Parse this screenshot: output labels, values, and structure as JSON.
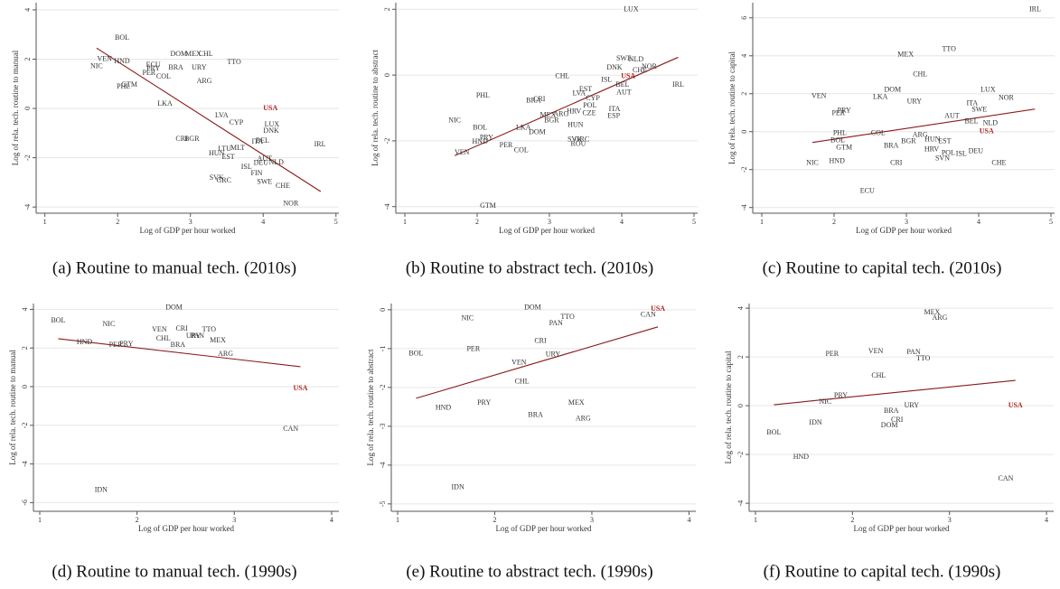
{
  "chart_data": [
    {
      "type": "scatter",
      "caption": "(a) Routine to manual tech. (2010s)",
      "xlabel": "Log of GDP per hour worked",
      "ylabel": "Log of rela. tech. routine to manual",
      "xlim": [
        0.88,
        5.04
      ],
      "ylim": [
        -4.25,
        4.29
      ],
      "xticks": [
        1,
        2,
        3,
        4,
        5
      ],
      "yticks": [
        -4,
        -2,
        0,
        2,
        4
      ],
      "grid": true,
      "series": [
        {
          "color": "#333333",
          "labels": [
            "BOL",
            "VEN",
            "HND",
            "NIC",
            "DOM",
            "MEX",
            "CHL",
            "ECU",
            "PRY",
            "PER",
            "BRA",
            "URY",
            "COL",
            "TTO",
            "PHL",
            "GTM",
            "ARG",
            "LKA",
            "LVA",
            "CYP",
            "LUX",
            "DNK",
            "CRI",
            "BGR",
            "IRL",
            "AUT",
            "NLD",
            "DEU",
            "ISL",
            "FIN",
            "SWE",
            "CHE",
            "NOR",
            "LTU",
            "MLT",
            "EST",
            "HUN",
            "SVK",
            "GRC",
            "ITA",
            "BEL"
          ],
          "x": [
            2.06,
            1.82,
            2.06,
            1.71,
            2.84,
            3.04,
            3.21,
            2.49,
            2.49,
            2.43,
            2.8,
            3.12,
            2.63,
            3.6,
            2.08,
            2.16,
            3.19,
            2.65,
            3.43,
            3.63,
            4.12,
            4.11,
            2.88,
            3.02,
            4.78,
            4.02,
            4.18,
            3.97,
            3.77,
            3.91,
            4.02,
            4.27,
            4.38,
            3.47,
            3.65,
            3.52,
            3.36,
            3.36,
            3.46,
            3.92,
            3.99
          ],
          "y": [
            2.86,
            2.0,
            1.9,
            1.7,
            2.2,
            2.2,
            2.2,
            1.76,
            1.6,
            1.43,
            1.65,
            1.65,
            1.28,
            1.87,
            0.88,
            0.95,
            1.1,
            0.18,
            -0.29,
            -0.59,
            -0.66,
            -0.92,
            -1.25,
            -1.25,
            -1.47,
            -2.05,
            -2.2,
            -2.23,
            -2.38,
            -2.64,
            -3.0,
            -3.15,
            -3.88,
            -1.65,
            -1.61,
            -1.98,
            -1.83,
            -2.82,
            -2.93,
            -1.36,
            -1.32
          ]
        },
        {
          "color": "#b22222",
          "labels": [
            "USA"
          ],
          "x": [
            4.1
          ],
          "y": [
            0.0
          ]
        }
      ],
      "fit": {
        "color": "#8b1a1a",
        "x": [
          1.71,
          4.79
        ],
        "y": [
          2.45,
          -3.37
        ]
      }
    },
    {
      "type": "scatter",
      "caption": "(b) Routine to abstract tech. (2010s)",
      "xlabel": "Log of GDP per hour worked",
      "ylabel": "Log of rela. tech. routine to abstract",
      "xlim": [
        0.875,
        5.05
      ],
      "ylim": [
        -4.2,
        2.2
      ],
      "xticks": [
        1,
        2,
        3,
        4,
        5
      ],
      "yticks": [
        -4,
        -2,
        0,
        2
      ],
      "grid": true,
      "series": [
        {
          "color": "#333333",
          "labels": [
            "LUX",
            "SWE",
            "NLD",
            "DNK",
            "CHE",
            "NOR",
            "ISL",
            "BEL",
            "AUT",
            "CHL",
            "IRL",
            "PHL",
            "CRI",
            "BRA",
            "EST",
            "LVA",
            "CYP",
            "POL",
            "HRV",
            "ITA",
            "ESP",
            "CZE",
            "MEX",
            "ARG",
            "BGR",
            "HUN",
            "NIC",
            "BOL",
            "LKA",
            "DOM",
            "PRY",
            "HND",
            "PER",
            "COL",
            "SVK",
            "GRC",
            "ROU",
            "VEN",
            "GTM"
          ],
          "x": [
            4.13,
            4.03,
            4.2,
            3.9,
            4.25,
            4.38,
            3.79,
            4.01,
            4.03,
            3.18,
            4.78,
            2.08,
            2.86,
            2.78,
            3.5,
            3.41,
            3.6,
            3.56,
            3.34,
            3.9,
            3.89,
            3.55,
            2.98,
            3.16,
            3.03,
            3.36,
            1.69,
            2.04,
            2.64,
            2.83,
            2.13,
            2.04,
            2.4,
            2.61,
            3.35,
            3.45,
            3.4,
            1.79,
            2.15
          ],
          "y": [
            1.99,
            0.49,
            0.46,
            0.22,
            0.14,
            0.25,
            -0.16,
            -0.3,
            -0.54,
            -0.05,
            -0.3,
            -0.63,
            -0.74,
            -0.79,
            -0.44,
            -0.57,
            -0.71,
            -0.93,
            -1.12,
            -1.04,
            -1.25,
            -1.17,
            -1.23,
            -1.2,
            -1.39,
            -1.53,
            -1.39,
            -1.61,
            -1.61,
            -1.74,
            -1.91,
            -2.04,
            -2.15,
            -2.29,
            -1.96,
            -1.96,
            -2.1,
            -2.37,
            -3.98
          ]
        },
        {
          "color": "#b22222",
          "labels": [
            "USA"
          ],
          "x": [
            4.09
          ],
          "y": [
            -0.05
          ]
        }
      ],
      "fit": {
        "color": "#8b1a1a",
        "x": [
          1.69,
          4.78
        ],
        "y": [
          -2.45,
          0.54
        ]
      }
    },
    {
      "type": "scatter",
      "caption": "(c) Routine to capital tech. (2010s)",
      "xlabel": "Log of GDP per hour worked",
      "ylabel": "Log of rela. tech. routine to capital",
      "xlim": [
        0.875,
        5.05
      ],
      "ylim": [
        -4.3,
        6.8
      ],
      "xticks": [
        1,
        2,
        3,
        4,
        5
      ],
      "yticks": [
        -4,
        -2,
        0,
        2,
        4,
        6
      ],
      "grid": true,
      "series": [
        {
          "color": "#333333",
          "labels": [
            "IRL",
            "TTO",
            "MEX",
            "CHL",
            "DOM",
            "VEN",
            "LKA",
            "URY",
            "LUX",
            "NOR",
            "ITA",
            "SWE",
            "PRY",
            "PER",
            "AUT",
            "BEL",
            "NLD",
            "PHL",
            "COL",
            "BOL",
            "GTM",
            "BRA",
            "BGR",
            "ARG",
            "HUN",
            "EST",
            "HRV",
            "POL",
            "SVN",
            "ISL",
            "DEU",
            "NIC",
            "HND",
            "CRI",
            "CHE",
            "ECU"
          ],
          "x": [
            4.78,
            3.59,
            2.99,
            3.19,
            2.81,
            1.79,
            2.64,
            3.11,
            4.13,
            4.38,
            3.91,
            4.01,
            2.14,
            2.06,
            3.63,
            3.9,
            4.16,
            2.08,
            2.61,
            2.05,
            2.14,
            2.79,
            3.03,
            3.19,
            3.36,
            3.53,
            3.35,
            3.58,
            3.5,
            3.76,
            3.96,
            1.7,
            2.04,
            2.86,
            4.28,
            2.46
          ],
          "y": [
            6.43,
            4.33,
            4.05,
            3.0,
            2.19,
            1.86,
            1.81,
            1.57,
            2.19,
            1.76,
            1.48,
            1.14,
            1.1,
            0.95,
            0.81,
            0.52,
            0.43,
            -0.1,
            -0.1,
            -0.48,
            -0.86,
            -0.76,
            -0.52,
            -0.19,
            -0.43,
            -0.52,
            -0.95,
            -1.14,
            -1.43,
            -1.19,
            -1.05,
            -1.67,
            -1.57,
            -1.67,
            -1.67,
            -3.14
          ]
        },
        {
          "color": "#b22222",
          "labels": [
            "USA"
          ],
          "x": [
            4.11
          ],
          "y": [
            0.0
          ]
        }
      ],
      "fit": {
        "color": "#8b1a1a",
        "x": [
          1.7,
          4.78
        ],
        "y": [
          -0.57,
          1.19
        ]
      }
    },
    {
      "type": "scatter",
      "caption": "(d) Routine to manual tech. (1990s)",
      "xlabel": "Log of GDP per hour worked",
      "ylabel": "Log of rela. tech. routine to manual",
      "xlim": [
        0.935,
        4.075
      ],
      "ylim": [
        -6.45,
        4.3
      ],
      "xticks": [
        1,
        2,
        3,
        4
      ],
      "yticks": [
        -6,
        -4,
        -2,
        0,
        2,
        4
      ],
      "grid": true,
      "series": [
        {
          "color": "#333333",
          "labels": [
            "BOL",
            "NIC",
            "DOM",
            "VEN",
            "CRI",
            "TTO",
            "URY",
            "PAN",
            "CHL",
            "MEX",
            "HND",
            "PER",
            "PRY",
            "BRA",
            "ARG",
            "CAN",
            "IDN"
          ],
          "x": [
            1.19,
            1.71,
            2.38,
            2.23,
            2.46,
            2.74,
            2.58,
            2.62,
            2.27,
            2.83,
            1.46,
            1.78,
            1.89,
            2.42,
            2.91,
            3.58,
            1.63
          ],
          "y": [
            3.41,
            3.22,
            4.07,
            2.94,
            2.99,
            2.94,
            2.62,
            2.62,
            2.48,
            2.38,
            2.29,
            2.15,
            2.2,
            2.15,
            1.68,
            -2.2,
            -5.37
          ]
        },
        {
          "color": "#b22222",
          "labels": [
            "USA"
          ],
          "x": [
            3.68
          ],
          "y": [
            -0.09
          ]
        }
      ],
      "fit": {
        "color": "#8b1a1a",
        "x": [
          1.19,
          3.68
        ],
        "y": [
          2.48,
          1.03
        ]
      }
    },
    {
      "type": "scatter",
      "caption": "(e) Routine to abstract tech. (1990s)",
      "xlabel": "Log of GDP per hour worked",
      "ylabel": "Log of rela. tech. routine to abstract",
      "xlim": [
        0.935,
        4.07
      ],
      "ylim": [
        -5.19,
        0.16
      ],
      "xticks": [
        1,
        2,
        3,
        4
      ],
      "yticks": [
        -5,
        -4,
        -3,
        -2,
        -1,
        0
      ],
      "grid": true,
      "series": [
        {
          "color": "#333333",
          "labels": [
            "DOM",
            "NIC",
            "CAN",
            "TTO",
            "PAN",
            "PER",
            "CRI",
            "BOL",
            "URY",
            "VEN",
            "CHL",
            "PRY",
            "MEX",
            "HND",
            "BRA",
            "ARG",
            "IDN"
          ],
          "x": [
            2.39,
            1.72,
            3.58,
            2.75,
            2.63,
            1.78,
            2.47,
            1.19,
            2.6,
            2.25,
            2.28,
            1.89,
            2.84,
            1.47,
            2.42,
            2.91,
            1.62
          ],
          "y": [
            0.05,
            -0.23,
            -0.14,
            -0.19,
            -0.35,
            -1.02,
            -0.81,
            -1.14,
            -1.16,
            -1.37,
            -1.86,
            -2.4,
            -2.4,
            -2.53,
            -2.72,
            -2.81,
            -4.58
          ]
        },
        {
          "color": "#b22222",
          "labels": [
            "USA"
          ],
          "x": [
            3.68
          ],
          "y": [
            0.02
          ]
        }
      ],
      "fit": {
        "color": "#8b1a1a",
        "x": [
          1.19,
          3.68
        ],
        "y": [
          -2.28,
          -0.44
        ]
      }
    },
    {
      "type": "scatter",
      "caption": "(f) Routine to capital tech. (1990s)",
      "xlabel": "Log of GDP per hour worked",
      "ylabel": "Log of rela. tech. routine to capital",
      "xlim": [
        0.935,
        4.074
      ],
      "ylim": [
        -4.33,
        4.19
      ],
      "xticks": [
        1,
        2,
        3,
        4
      ],
      "yticks": [
        -4,
        -2,
        0,
        2,
        4
      ],
      "grid": true,
      "series": [
        {
          "color": "#333333",
          "labels": [
            "MEX",
            "ARG",
            "PER",
            "VEN",
            "PAN",
            "TTO",
            "CHL",
            "PRY",
            "NIC",
            "URY",
            "BRA",
            "CRI",
            "DOM",
            "IDN",
            "BOL",
            "HND",
            "CAN"
          ],
          "x": [
            2.82,
            2.9,
            1.79,
            2.24,
            2.63,
            2.73,
            2.27,
            1.88,
            1.72,
            2.61,
            2.4,
            2.46,
            2.38,
            1.62,
            1.19,
            1.47,
            3.58
          ],
          "y": [
            3.81,
            3.59,
            2.11,
            2.22,
            2.19,
            1.93,
            1.22,
            0.41,
            0.15,
            0.0,
            -0.22,
            -0.59,
            -0.81,
            -0.7,
            -1.11,
            -2.11,
            -3.0
          ]
        },
        {
          "color": "#b22222",
          "labels": [
            "USA"
          ],
          "x": [
            3.68
          ],
          "y": [
            0.0
          ]
        }
      ],
      "fit": {
        "color": "#8b1a1a",
        "x": [
          1.19,
          3.68
        ],
        "y": [
          0.04,
          1.04
        ]
      }
    }
  ]
}
